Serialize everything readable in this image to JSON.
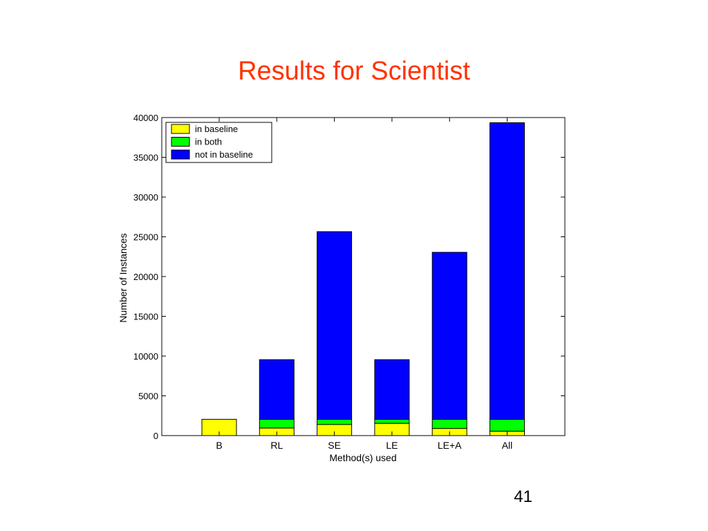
{
  "slide": {
    "title": "Results for Scientist",
    "page_number": "41"
  },
  "colors": {
    "title": "#ff3300",
    "in_baseline": "#ffff00",
    "in_both": "#00ff00",
    "not_in_baseline": "#0000ff"
  },
  "chart_data": {
    "type": "bar",
    "stacked": true,
    "xlabel": "Method(s) used",
    "ylabel": "Number of Instances",
    "ylim": [
      0,
      40000
    ],
    "yticks": [
      0,
      5000,
      10000,
      15000,
      20000,
      25000,
      30000,
      35000,
      40000
    ],
    "categories": [
      "B",
      "RL",
      "SE",
      "LE",
      "LE+A",
      "All"
    ],
    "series": [
      {
        "name": "in baseline",
        "color": "#ffff00",
        "values": [
          2050,
          950,
          1400,
          1550,
          900,
          550
        ]
      },
      {
        "name": "in both",
        "color": "#00ff00",
        "values": [
          0,
          1100,
          650,
          500,
          1150,
          1500
        ]
      },
      {
        "name": "not in baseline",
        "color": "#0000ff",
        "values": [
          0,
          7500,
          23600,
          7500,
          21000,
          37300
        ]
      }
    ],
    "legend_position": "top-left",
    "grid": false
  }
}
